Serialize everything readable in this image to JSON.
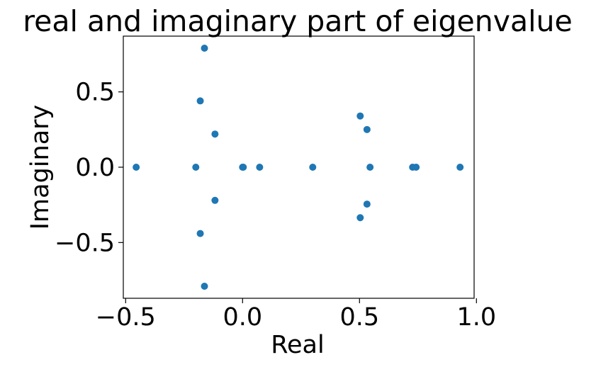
{
  "chart_data": {
    "type": "scatter",
    "title": "real and imaginary part of eigenvalue",
    "xlabel": "Real",
    "ylabel": "Imaginary",
    "xlim": [
      -0.51,
      0.99
    ],
    "ylim": [
      -0.87,
      0.87
    ],
    "xticks": [
      -0.5,
      0.0,
      0.5,
      1.0
    ],
    "xtick_labels": [
      "−0.5",
      "0.0",
      "0.5",
      "1.0"
    ],
    "yticks": [
      -0.5,
      0.0,
      0.5
    ],
    "ytick_labels": [
      "−0.5",
      "0.0",
      "0.5"
    ],
    "grid": false,
    "legend": "none",
    "marker_color": "#1f77b4",
    "points": [
      {
        "x": -0.455,
        "y": 0.0
      },
      {
        "x": -0.2,
        "y": 0.0
      },
      {
        "x": -0.163,
        "y": 0.79
      },
      {
        "x": -0.163,
        "y": -0.79
      },
      {
        "x": -0.181,
        "y": 0.44
      },
      {
        "x": -0.181,
        "y": -0.44
      },
      {
        "x": -0.118,
        "y": 0.22
      },
      {
        "x": -0.118,
        "y": -0.22
      },
      {
        "x": 0.0,
        "y": 0.0
      },
      {
        "x": 0.003,
        "y": 0.0
      },
      {
        "x": 0.073,
        "y": 0.0
      },
      {
        "x": 0.3,
        "y": 0.0
      },
      {
        "x": 0.503,
        "y": 0.34
      },
      {
        "x": 0.503,
        "y": -0.335
      },
      {
        "x": 0.532,
        "y": 0.25
      },
      {
        "x": 0.532,
        "y": -0.245
      },
      {
        "x": 0.545,
        "y": 0.0
      },
      {
        "x": 0.727,
        "y": 0.0
      },
      {
        "x": 0.742,
        "y": 0.0
      },
      {
        "x": 0.93,
        "y": 0.0
      }
    ]
  }
}
